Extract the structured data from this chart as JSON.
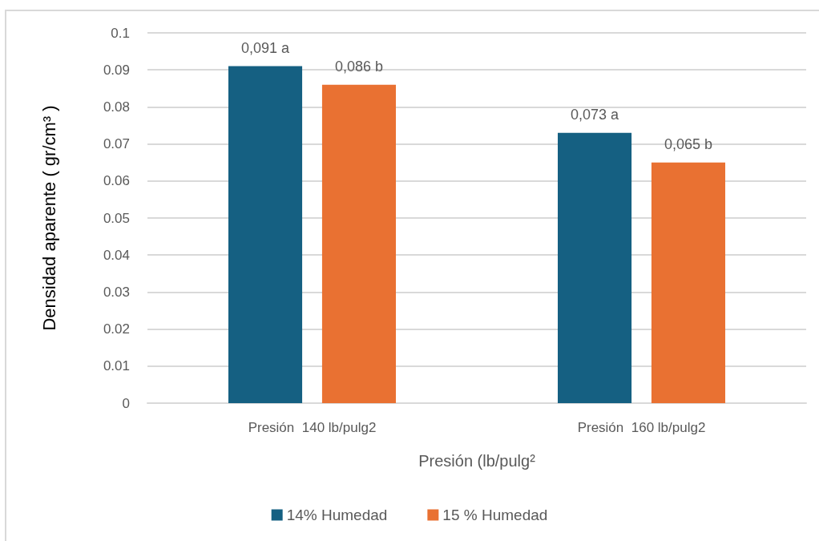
{
  "chart_data": {
    "type": "bar",
    "categories": [
      "Presión  140 lb/pulg2",
      "Presión  160 lb/pulg2"
    ],
    "series": [
      {
        "name": "14% Humedad",
        "color": "#156082",
        "values": [
          0.091,
          0.073
        ],
        "value_labels": [
          "0,091 a",
          "0,073 a"
        ]
      },
      {
        "name": "15 % Humedad",
        "color": "#e97132",
        "values": [
          0.086,
          0.065
        ],
        "value_labels": [
          "0,086 b",
          "0,065 b"
        ]
      }
    ],
    "xlabel": "Presión (lb/pulg²",
    "ylabel": "Densidad aparente ( gr/cm³ )",
    "ylim": [
      0,
      0.1
    ],
    "yticks": [
      0,
      0.01,
      0.02,
      0.03,
      0.04,
      0.05,
      0.06,
      0.07,
      0.08,
      0.09,
      0.1
    ],
    "grid": "y",
    "legend": "bottom"
  }
}
